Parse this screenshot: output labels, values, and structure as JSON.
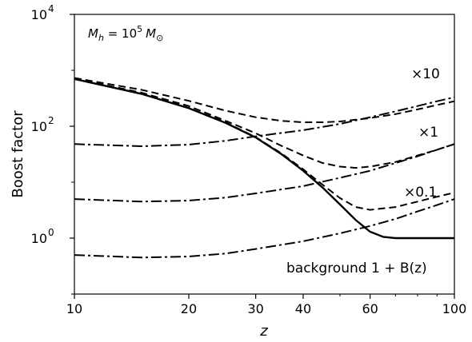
{
  "chart_data": {
    "type": "line",
    "xlabel": "z",
    "ylabel": "Boost factor",
    "x_scale": "log",
    "y_scale": "log",
    "xlim": [
      10,
      100
    ],
    "ylim": [
      0.1,
      10000
    ],
    "x_ticks": [
      {
        "value": 10,
        "label": "10"
      },
      {
        "value": 20,
        "label": "20"
      },
      {
        "value": 30,
        "label": "30"
      },
      {
        "value": 40,
        "label": "40"
      },
      {
        "value": 60,
        "label": "60"
      },
      {
        "value": 100,
        "label": "100"
      }
    ],
    "y_ticks": [
      {
        "value": 1,
        "base": "10",
        "exp": "0"
      },
      {
        "value": 100,
        "base": "10",
        "exp": "2"
      },
      {
        "value": 10000,
        "base": "10",
        "exp": "4"
      }
    ],
    "y_minor_ticks": [
      0.1,
      10,
      1000
    ],
    "annotation_mass": {
      "prefix": "M",
      "sub": "h",
      "mid": " = 10",
      "exp": "5",
      "unit": "M",
      "unit_sub": "⊙"
    },
    "labels": {
      "x10": "×10",
      "x1": "×1",
      "x01": "×0.1",
      "background": "background 1 + B(z)"
    },
    "series": [
      {
        "style": "solid",
        "points": [
          [
            10,
            700
          ],
          [
            15,
            380
          ],
          [
            20,
            210
          ],
          [
            25,
            115
          ],
          [
            30,
            63
          ],
          [
            35,
            32
          ],
          [
            40,
            16
          ],
          [
            45,
            8
          ],
          [
            50,
            4
          ],
          [
            55,
            2.1
          ],
          [
            60,
            1.3
          ],
          [
            65,
            1.05
          ],
          [
            70,
            1.0
          ],
          [
            80,
            1.0
          ],
          [
            100,
            1.0
          ]
        ]
      },
      {
        "style": "dashed",
        "points": [
          [
            10,
            730
          ],
          [
            15,
            450
          ],
          [
            20,
            285
          ],
          [
            25,
            190
          ],
          [
            30,
            145
          ],
          [
            35,
            125
          ],
          [
            40,
            118
          ],
          [
            45,
            118
          ],
          [
            50,
            122
          ],
          [
            60,
            140
          ],
          [
            70,
            165
          ],
          [
            80,
            200
          ],
          [
            90,
            240
          ],
          [
            100,
            280
          ]
        ]
      },
      {
        "style": "dashed",
        "points": [
          [
            10,
            710
          ],
          [
            15,
            400
          ],
          [
            20,
            230
          ],
          [
            25,
            125
          ],
          [
            30,
            75
          ],
          [
            35,
            45
          ],
          [
            40,
            30
          ],
          [
            45,
            22
          ],
          [
            50,
            19
          ],
          [
            55,
            18
          ],
          [
            60,
            19
          ],
          [
            70,
            23
          ],
          [
            80,
            30
          ],
          [
            90,
            38
          ],
          [
            100,
            48
          ]
        ]
      },
      {
        "style": "dashed",
        "points": [
          [
            10,
            700
          ],
          [
            15,
            385
          ],
          [
            20,
            213
          ],
          [
            25,
            117
          ],
          [
            30,
            64
          ],
          [
            35,
            33
          ],
          [
            40,
            17
          ],
          [
            45,
            9
          ],
          [
            50,
            5.2
          ],
          [
            55,
            3.6
          ],
          [
            60,
            3.2
          ],
          [
            70,
            3.6
          ],
          [
            80,
            4.5
          ],
          [
            90,
            5.5
          ],
          [
            100,
            6.5
          ]
        ]
      },
      {
        "style": "dashdot",
        "points": [
          [
            10,
            48
          ],
          [
            15,
            44
          ],
          [
            20,
            47
          ],
          [
            25,
            55
          ],
          [
            30,
            66
          ],
          [
            40,
            85
          ],
          [
            50,
            110
          ],
          [
            60,
            145
          ],
          [
            70,
            185
          ],
          [
            80,
            230
          ],
          [
            90,
            280
          ],
          [
            100,
            330
          ]
        ]
      },
      {
        "style": "dashdot",
        "points": [
          [
            10,
            5
          ],
          [
            15,
            4.5
          ],
          [
            20,
            4.7
          ],
          [
            25,
            5.3
          ],
          [
            30,
            6.3
          ],
          [
            40,
            8.5
          ],
          [
            50,
            12
          ],
          [
            60,
            16
          ],
          [
            70,
            22
          ],
          [
            80,
            29
          ],
          [
            90,
            38
          ],
          [
            100,
            48
          ]
        ]
      },
      {
        "style": "dashdot",
        "points": [
          [
            10,
            0.5
          ],
          [
            15,
            0.45
          ],
          [
            20,
            0.47
          ],
          [
            25,
            0.53
          ],
          [
            30,
            0.64
          ],
          [
            40,
            0.88
          ],
          [
            50,
            1.22
          ],
          [
            60,
            1.65
          ],
          [
            70,
            2.2
          ],
          [
            80,
            3.0
          ],
          [
            90,
            3.9
          ],
          [
            100,
            5.0
          ]
        ]
      }
    ]
  }
}
